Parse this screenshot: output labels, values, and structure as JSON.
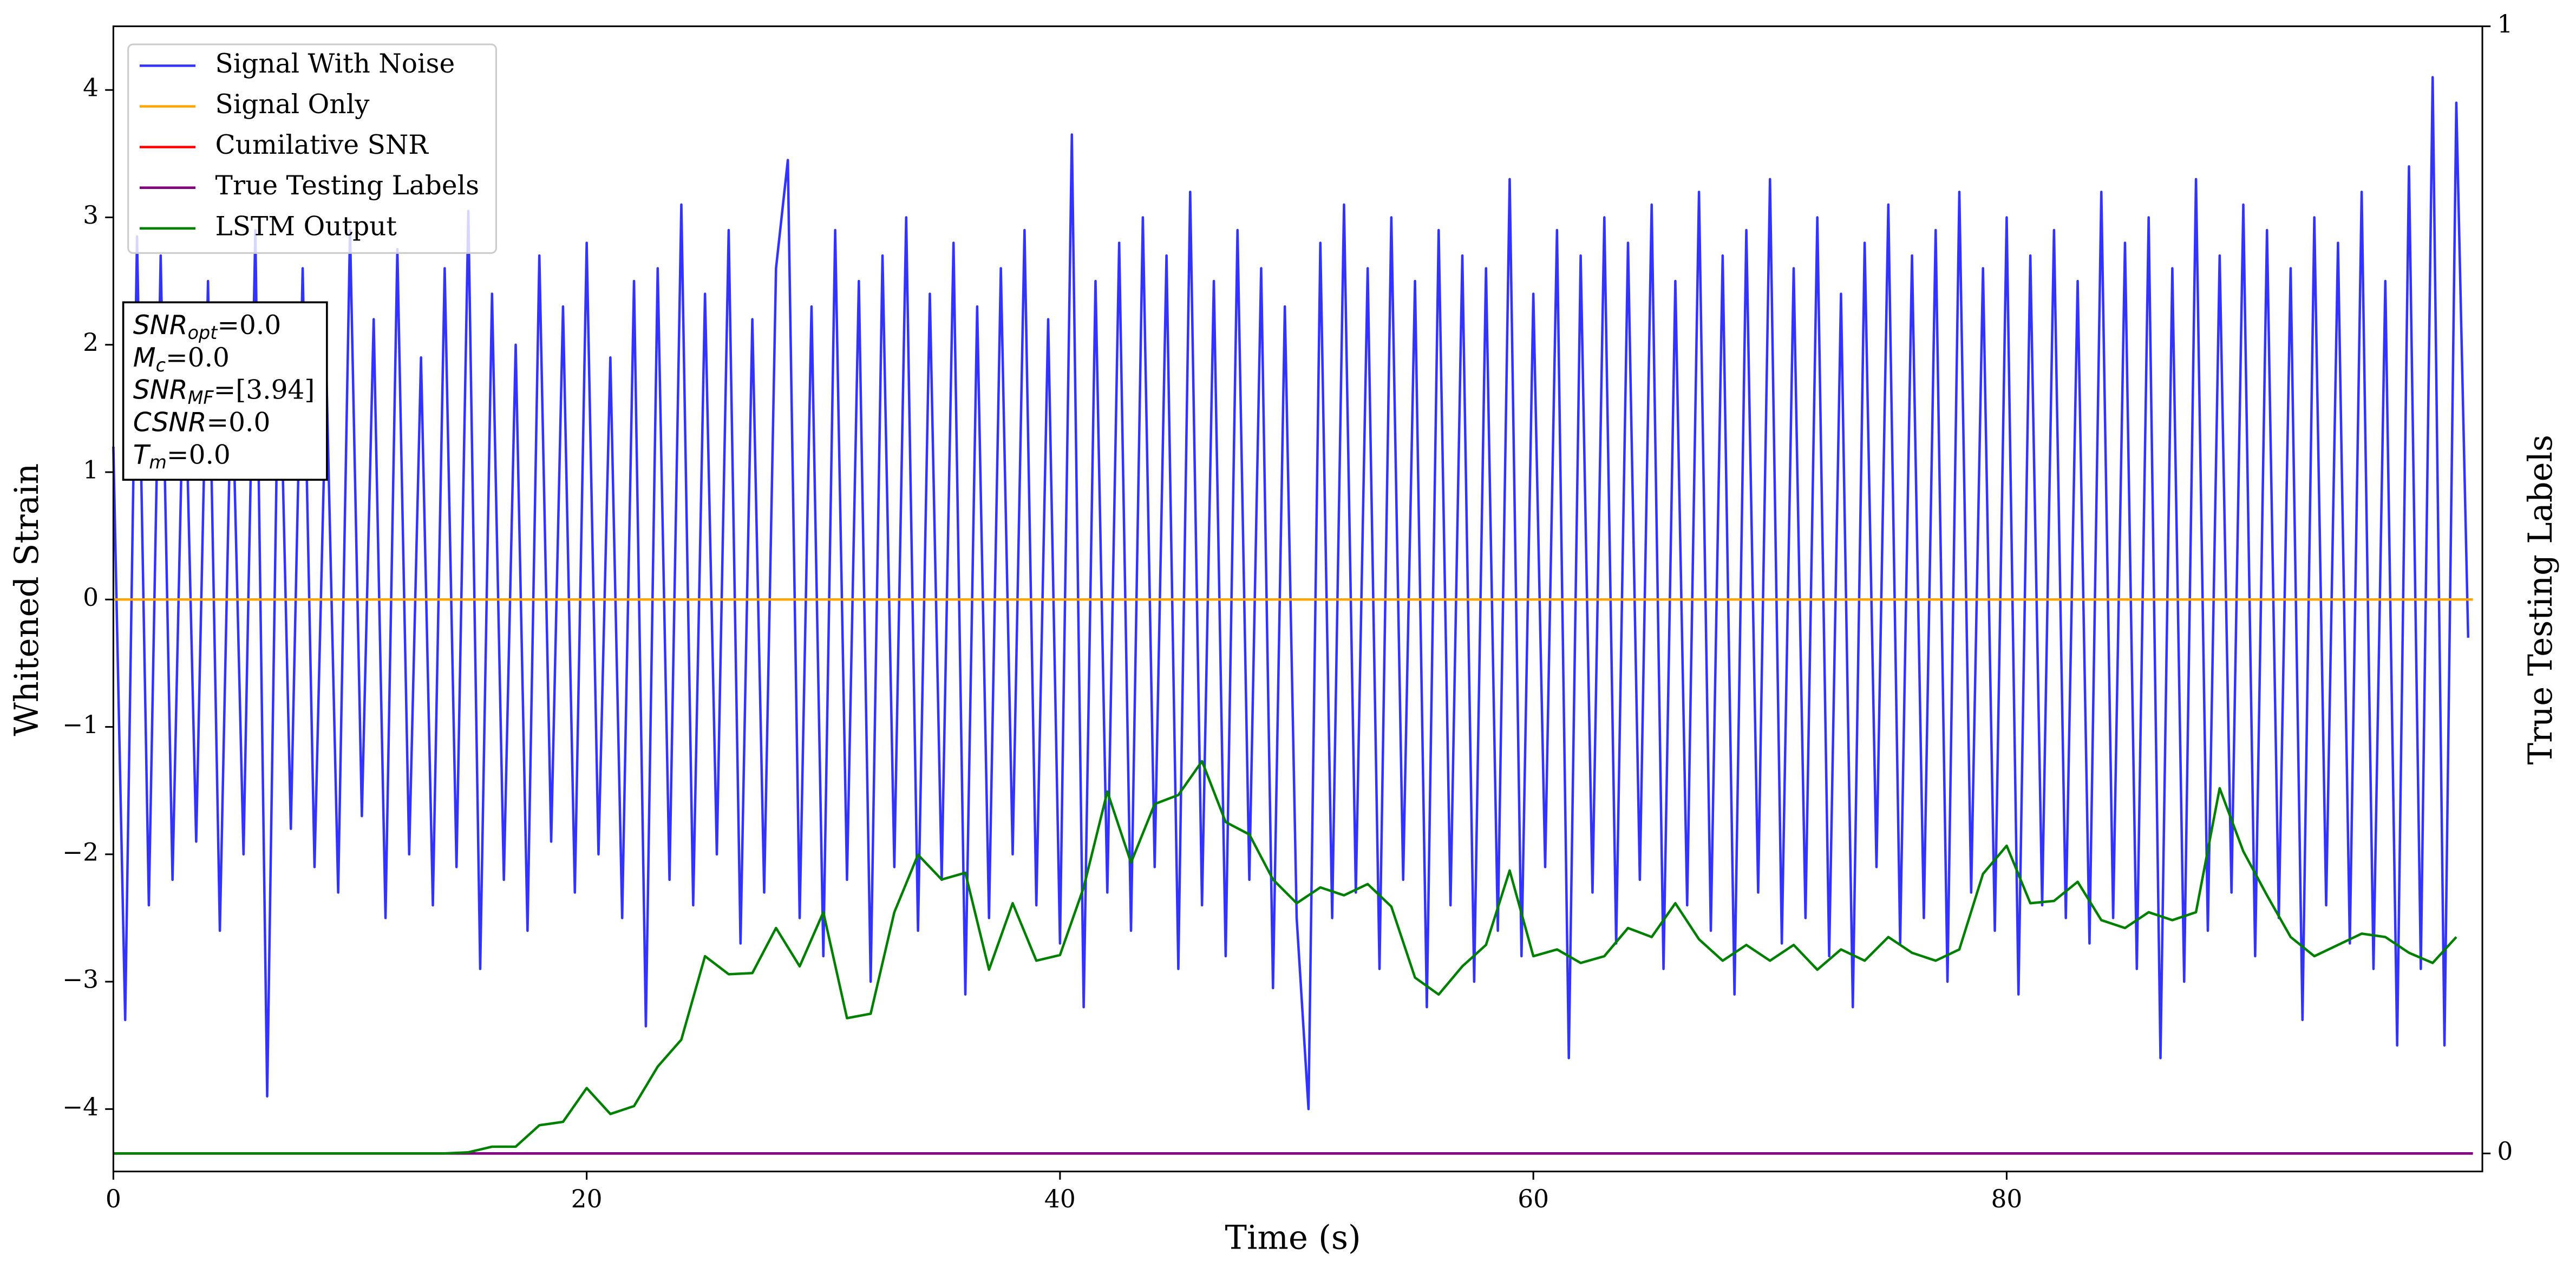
{
  "chart_data": {
    "type": "line",
    "xlabel": "Time (s)",
    "ylabel": "Whitened Strain",
    "y2label": "True Testing Labels",
    "xlim": [
      0,
      100.1
    ],
    "xticks": [
      0,
      20,
      40,
      60,
      80
    ],
    "ylim": [
      -4.49,
      4.5
    ],
    "yticks": [
      {
        "value": -4,
        "label": "−4"
      },
      {
        "value": -3,
        "label": "−3"
      },
      {
        "value": -2,
        "label": "−2"
      },
      {
        "value": -1,
        "label": "−1"
      },
      0,
      1,
      2,
      3,
      4
    ],
    "y2lim": [
      -0.016,
      1
    ],
    "y2ticks": [
      0,
      1
    ],
    "legend": "upper left",
    "annotation": [
      {
        "text": "SNR",
        "sub": "opt",
        "rest": "=0.0"
      },
      {
        "text": "M",
        "sub": "c",
        "rest": "=0.0"
      },
      {
        "text": "SNR",
        "sub": "MF",
        "rest": "=[3.94]"
      },
      {
        "text": "CSNR",
        "rest": "=0.0"
      },
      {
        "text": "T",
        "sub": "m",
        "rest": "=0.0"
      }
    ],
    "series": [
      {
        "name": "Signal With Noise",
        "color": "#3333ff",
        "x": [
          0,
          0.5,
          1,
          1.5,
          2,
          2.5,
          3,
          3.5,
          4,
          4.5,
          5,
          5.5,
          6,
          6.5,
          7,
          7.5,
          8,
          8.5,
          9,
          9.5,
          10,
          10.5,
          11,
          11.5,
          12,
          12.5,
          13,
          13.5,
          14,
          14.5,
          15,
          15.5,
          16,
          16.5,
          17,
          17.5,
          18,
          18.5,
          19,
          19.5,
          20,
          20.5,
          21,
          21.5,
          22,
          22.5,
          23,
          23.5,
          24,
          24.5,
          25,
          25.5,
          26,
          26.5,
          27,
          27.5,
          28,
          28.5,
          29,
          29.5,
          30,
          30.5,
          31,
          31.5,
          32,
          32.5,
          33,
          33.5,
          34,
          34.5,
          35,
          35.5,
          36,
          36.5,
          37,
          37.5,
          38,
          38.5,
          39,
          39.5,
          40,
          40.5,
          41,
          41.5,
          42,
          42.5,
          43,
          43.5,
          44,
          44.5,
          45,
          45.5,
          46,
          46.5,
          47,
          47.5,
          48,
          48.5,
          49,
          49.5,
          50,
          50.5,
          51,
          51.5,
          52,
          52.5,
          53,
          53.5,
          54,
          54.5,
          55,
          55.5,
          56,
          56.5,
          57,
          57.5,
          58,
          58.5,
          59,
          59.5,
          60,
          60.5,
          61,
          61.5,
          62,
          62.5,
          63,
          63.5,
          64,
          64.5,
          65,
          65.5,
          66,
          66.5,
          67,
          67.5,
          68,
          68.5,
          69,
          69.5,
          70,
          70.5,
          71,
          71.5,
          72,
          72.5,
          73,
          73.5,
          74,
          74.5,
          75,
          75.5,
          76,
          76.5,
          77,
          77.5,
          78,
          78.5,
          79,
          79.5,
          80,
          80.5,
          81,
          81.5,
          82,
          82.5,
          83,
          83.5,
          84,
          84.5,
          85,
          85.5,
          86,
          86.5,
          87,
          87.5,
          88,
          88.5,
          89,
          89.5,
          90,
          90.5,
          91,
          91.5,
          92,
          92.5,
          93,
          93.5,
          94,
          94.5,
          95,
          95.5,
          96,
          96.5,
          97,
          97.5,
          98,
          98.5,
          99,
          99.5
        ],
        "values": [
          1.2,
          -3.3,
          2.85,
          -2.4,
          2.7,
          -2.2,
          2.1,
          -1.9,
          2.5,
          -2.6,
          1.9,
          -2.0,
          2.9,
          -3.9,
          2.3,
          -1.8,
          2.6,
          -2.1,
          1.8,
          -2.3,
          2.9,
          -1.7,
          2.2,
          -2.5,
          2.75,
          -2.0,
          1.9,
          -2.4,
          2.6,
          -2.1,
          3.05,
          -2.9,
          2.4,
          -2.2,
          2.0,
          -2.6,
          2.7,
          -1.9,
          2.3,
          -2.3,
          2.8,
          -2.0,
          1.9,
          -2.5,
          2.5,
          -3.35,
          2.6,
          -2.2,
          3.1,
          -2.4,
          2.4,
          -2.0,
          2.9,
          -2.7,
          2.2,
          -2.3,
          2.6,
          3.45,
          -2.5,
          2.3,
          -2.8,
          2.9,
          -2.2,
          2.5,
          -3.0,
          2.7,
          -2.1,
          3.0,
          -2.6,
          2.4,
          -2.2,
          2.8,
          -3.1,
          2.3,
          -2.5,
          2.6,
          -2.0,
          2.9,
          -2.4,
          2.2,
          -2.7,
          3.65,
          -3.2,
          2.5,
          -2.3,
          2.8,
          -2.6,
          3.0,
          -2.1,
          2.7,
          -2.9,
          3.2,
          -2.4,
          2.5,
          -2.8,
          2.9,
          -2.2,
          2.6,
          -3.05,
          2.3,
          -2.5,
          -4.0,
          2.8,
          -2.5,
          3.1,
          -2.3,
          2.6,
          -2.9,
          3.0,
          -2.2,
          2.5,
          -3.2,
          2.9,
          -2.4,
          2.7,
          -3.0,
          2.6,
          -2.6,
          3.3,
          -2.8,
          2.4,
          -2.1,
          2.9,
          -3.6,
          2.7,
          -2.3,
          3.0,
          -2.7,
          2.8,
          -2.2,
          3.1,
          -2.9,
          2.5,
          -2.4,
          3.2,
          -2.6,
          2.7,
          -3.1,
          2.9,
          -2.3,
          3.3,
          -2.7,
          2.6,
          -2.5,
          3.0,
          -2.8,
          2.4,
          -3.2,
          2.8,
          -2.1,
          3.1,
          -2.7,
          2.7,
          -2.5,
          2.9,
          -3.0,
          3.2,
          -2.3,
          2.6,
          -2.6,
          3.0,
          -3.1,
          2.7,
          -2.4,
          2.9,
          -2.5,
          2.5,
          -2.7,
          3.2,
          -2.5,
          2.8,
          -2.9,
          3.0,
          -3.6,
          2.6,
          -3.0,
          3.3,
          -2.6,
          2.7,
          -2.3,
          3.1,
          -2.8,
          2.9,
          -2.5,
          2.6,
          -3.3,
          3.0,
          -2.4,
          2.8,
          -2.7,
          3.2,
          -2.9,
          2.5,
          -3.5,
          3.4,
          -2.9,
          4.1,
          -3.5,
          3.9,
          -0.3
        ]
      },
      {
        "name": "Signal Only",
        "color": "#ffa500",
        "x": [
          0,
          99.7
        ],
        "values": [
          0,
          0
        ]
      },
      {
        "name": "Cumilative SNR",
        "color": "#ff0000",
        "axis": "y2",
        "x": [
          0,
          99.7
        ],
        "values": [
          0,
          0
        ]
      },
      {
        "name": "True Testing Labels",
        "color": "#800080",
        "axis": "y2",
        "x": [
          0,
          99.7
        ],
        "values": [
          0,
          0
        ]
      },
      {
        "name": "LSTM Output",
        "color": "#008000",
        "axis": "y2",
        "x": [
          0,
          1,
          2,
          3,
          4,
          5,
          6,
          7,
          8,
          9,
          10,
          11,
          12,
          13,
          14,
          15,
          16,
          17,
          18,
          19,
          20,
          21,
          22,
          23,
          24,
          25,
          26,
          27,
          28,
          29,
          30,
          31,
          32,
          33,
          34,
          35,
          36,
          37,
          38,
          39,
          40,
          41,
          42,
          43,
          44,
          45,
          46,
          47,
          48,
          49,
          50,
          51,
          52,
          53,
          54,
          55,
          56,
          57,
          58,
          59,
          60,
          61,
          62,
          63,
          64,
          65,
          66,
          67,
          68,
          69,
          70,
          71,
          72,
          73,
          74,
          75,
          76,
          77,
          78,
          79,
          80,
          81,
          82,
          83,
          84,
          85,
          86,
          87,
          88,
          89,
          90,
          91,
          92,
          93,
          94,
          95,
          96,
          97,
          98,
          99
        ],
        "values": [
          0,
          0,
          0,
          0,
          0,
          0,
          0,
          0,
          0,
          0,
          0,
          0,
          0,
          0,
          0,
          0.001,
          0.006,
          0.006,
          0.025,
          0.028,
          0.058,
          0.035,
          0.042,
          0.077,
          0.101,
          0.175,
          0.159,
          0.16,
          0.2,
          0.166,
          0.214,
          0.12,
          0.124,
          0.214,
          0.265,
          0.243,
          0.249,
          0.163,
          0.222,
          0.171,
          0.176,
          0.236,
          0.321,
          0.258,
          0.31,
          0.318,
          0.348,
          0.294,
          0.283,
          0.243,
          0.222,
          0.236,
          0.229,
          0.239,
          0.219,
          0.156,
          0.141,
          0.166,
          0.185,
          0.251,
          0.175,
          0.181,
          0.169,
          0.175,
          0.2,
          0.192,
          0.222,
          0.19,
          0.171,
          0.185,
          0.171,
          0.185,
          0.163,
          0.181,
          0.171,
          0.192,
          0.178,
          0.171,
          0.181,
          0.248,
          0.273,
          0.222,
          0.224,
          0.241,
          0.207,
          0.2,
          0.214,
          0.207,
          0.214,
          0.324,
          0.268,
          0.229,
          0.192,
          0.175,
          0.185,
          0.195,
          0.192,
          0.178,
          0.169,
          0.192
        ]
      }
    ]
  }
}
